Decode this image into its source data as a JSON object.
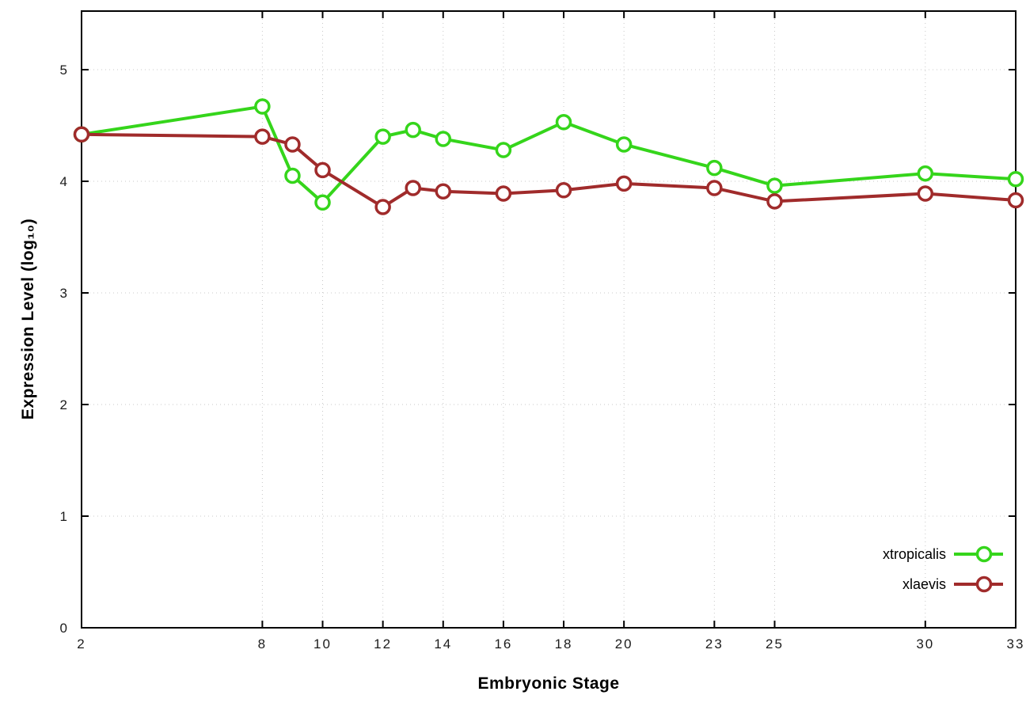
{
  "chart_data": {
    "type": "line",
    "x": [
      2,
      8,
      9,
      10,
      12,
      13,
      14,
      16,
      18,
      20,
      23,
      25,
      30,
      33
    ],
    "series": [
      {
        "name": "xtropicalis",
        "color": "#35d51b",
        "values": [
          4.42,
          4.67,
          4.05,
          3.81,
          4.4,
          4.46,
          4.38,
          4.28,
          4.53,
          4.33,
          4.12,
          3.96,
          4.07,
          4.02
        ]
      },
      {
        "name": "xlaevis",
        "color": "#a02b2b",
        "values": [
          4.42,
          4.4,
          4.33,
          4.1,
          3.77,
          3.94,
          3.91,
          3.89,
          3.92,
          3.98,
          3.94,
          3.82,
          3.89,
          3.83
        ]
      }
    ],
    "title": "",
    "xlabel": "Embryonic Stage",
    "ylabel": "Expression Level (log₁₀)",
    "xticks": [
      2,
      8,
      10,
      12,
      14,
      16,
      18,
      20,
      23,
      25,
      30,
      33
    ],
    "yticks": [
      0,
      1,
      2,
      3,
      4,
      5
    ],
    "xlim": [
      2,
      33
    ],
    "ylim": [
      0,
      5.525
    ],
    "grid": true,
    "legend_position": "bottom-right",
    "colors": {
      "grid": "#c8c8c8",
      "border": "#000000",
      "tick_label": "#1c1c1c",
      "background": "#ffffff"
    }
  }
}
